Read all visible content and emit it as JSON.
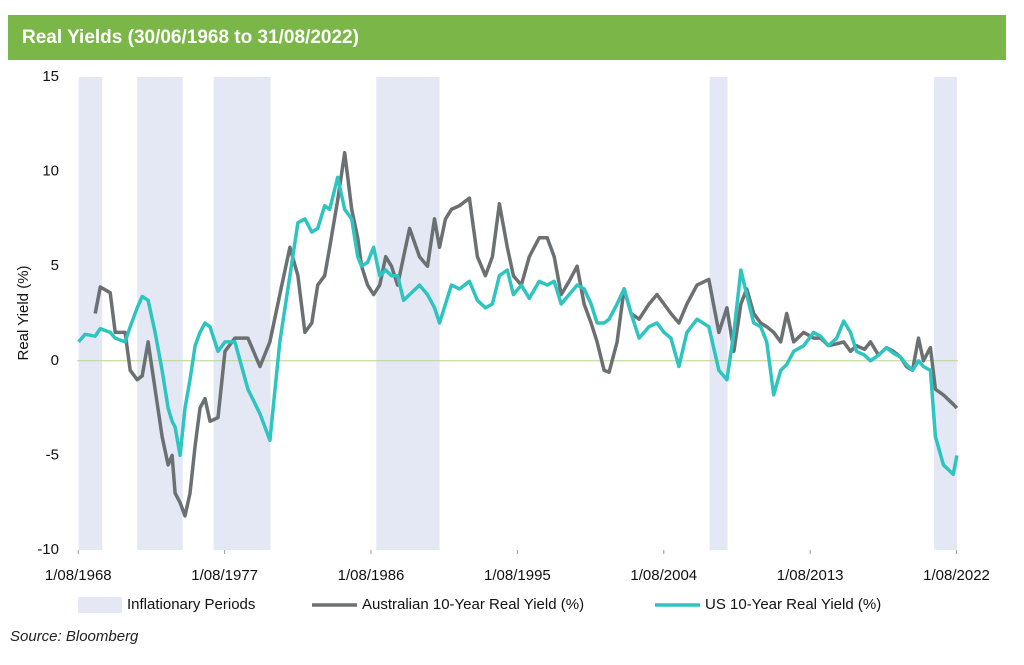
{
  "chart_data": {
    "type": "line",
    "title": "Real Yields (30/06/1968 to 31/08/2022)",
    "y_label": "Real Yield (%)",
    "source": "Source: Bloomberg",
    "xlim": [
      1968.5,
      2022.67
    ],
    "xticks": [
      {
        "value": 1968.58,
        "label": "1/08/1968"
      },
      {
        "value": 1977.58,
        "label": "1/08/1977"
      },
      {
        "value": 1986.58,
        "label": "1/08/1986"
      },
      {
        "value": 1995.58,
        "label": "1/08/1995"
      },
      {
        "value": 2004.58,
        "label": "1/08/2004"
      },
      {
        "value": 2013.58,
        "label": "1/08/2013"
      },
      {
        "value": 2022.58,
        "label": "1/08/2022"
      }
    ],
    "ylim": [
      -10,
      15
    ],
    "yticks": [
      -10,
      -5,
      0,
      5,
      10,
      15
    ],
    "grid": false,
    "shaded_periods": {
      "name": "Inflationary Periods",
      "color": "#e4e8f4",
      "ranges": [
        [
          1968.6,
          1970.05
        ],
        [
          1972.2,
          1975.0
        ],
        [
          1976.9,
          1980.4
        ],
        [
          1986.9,
          1990.8
        ],
        [
          2007.4,
          2008.5
        ],
        [
          2021.2,
          2022.6
        ]
      ]
    },
    "x": [
      1968.6,
      1969.0,
      1969.62,
      1969.93,
      1970.54,
      1970.85,
      1971.46,
      1971.77,
      1972.2,
      1972.51,
      1972.87,
      1973.3,
      1973.73,
      1974.1,
      1974.35,
      1974.53,
      1974.84,
      1975.14,
      1975.45,
      1975.76,
      1976.06,
      1976.37,
      1976.68,
      1977.17,
      1977.6,
      1978.21,
      1979.01,
      1979.75,
      1980.36,
      1980.97,
      1981.59,
      1982.08,
      1982.51,
      1982.94,
      1983.3,
      1983.73,
      1984.04,
      1984.53,
      1984.96,
      1985.39,
      1985.76,
      1986.0,
      1986.37,
      1986.74,
      1987.11,
      1987.48,
      1987.84,
      1988.21,
      1988.58,
      1988.95,
      1989.56,
      1990.05,
      1990.48,
      1990.79,
      1991.16,
      1991.52,
      1992.02,
      1992.63,
      1993.12,
      1993.61,
      1994.04,
      1994.47,
      1994.96,
      1995.33,
      1995.82,
      1996.31,
      1996.92,
      1997.41,
      1997.84,
      1998.27,
      1998.76,
      1999.25,
      1999.68,
      2000.11,
      2000.48,
      2000.91,
      2001.22,
      2001.71,
      2002.14,
      2002.57,
      2003.06,
      2003.67,
      2004.16,
      2004.59,
      2005.02,
      2005.51,
      2006.0,
      2006.62,
      2007.35,
      2007.97,
      2008.46,
      2008.89,
      2009.32,
      2009.68,
      2010.11,
      2010.54,
      2010.91,
      2011.34,
      2011.77,
      2012.14,
      2012.57,
      2013.18,
      2013.79,
      2014.22,
      2014.71,
      2015.21,
      2015.64,
      2016.06,
      2016.43,
      2016.92,
      2017.29,
      2017.78,
      2018.27,
      2018.7,
      2019.13,
      2019.5,
      2019.87,
      2020.24,
      2020.54,
      2020.97,
      2021.28,
      2021.77,
      2022.38,
      2022.6
    ],
    "series": [
      {
        "name": "Australian 10-Year Real Yield (%)",
        "color": "#6b7072",
        "values": [
          null,
          null,
          2.5,
          3.9,
          3.6,
          1.5,
          1.5,
          -0.5,
          -1.0,
          -0.8,
          1.0,
          -1.5,
          -4,
          -5.5,
          -5,
          -7,
          -7.5,
          -8.2,
          -7,
          -4.5,
          -2.5,
          -2.0,
          -3.2,
          -3.0,
          0.5,
          1.2,
          1.2,
          -0.3,
          1.0,
          3.5,
          6.0,
          4.5,
          1.5,
          2.0,
          4.0,
          4.5,
          6.0,
          8.5,
          11.0,
          8.0,
          6.5,
          5.0,
          4.0,
          3.5,
          4.0,
          5.5,
          5.0,
          4.0,
          5.5,
          7.0,
          5.5,
          5.0,
          7.5,
          6.0,
          7.5,
          8.0,
          8.2,
          8.6,
          5.5,
          4.5,
          5.5,
          8.3,
          6.0,
          4.5,
          4.0,
          5.5,
          6.5,
          6.5,
          5.5,
          3.5,
          4.2,
          5.0,
          3.0,
          2.0,
          1.0,
          -0.5,
          -0.6,
          1.0,
          3.8,
          2.5,
          2.2,
          3.0,
          3.5,
          3.0,
          2.5,
          2.0,
          3.0,
          4.0,
          4.3,
          1.5,
          2.8,
          0.5,
          3.0,
          3.8,
          2.5,
          2.0,
          1.8,
          1.5,
          1.0,
          2.5,
          1.0,
          1.5,
          1.2,
          1.2,
          0.8,
          0.9,
          1.0,
          0.5,
          0.8,
          0.6,
          1.0,
          0.3,
          0.7,
          0.5,
          0.2,
          -0.3,
          -0.5,
          1.2,
          0.0,
          0.7,
          -1.5,
          -1.8,
          -2.3,
          -2.5
        ]
      },
      {
        "name": "US 10-Year Real Yield (%)",
        "color": "#2ec4bf",
        "values": [
          1.0,
          1.4,
          1.3,
          1.7,
          1.5,
          1.2,
          1.0,
          1.8,
          2.8,
          3.4,
          3.2,
          1.5,
          -0.5,
          -2.5,
          -3.2,
          -3.5,
          -5.0,
          -2.5,
          -1.0,
          0.8,
          1.5,
          2.0,
          1.8,
          0.5,
          1.0,
          1.0,
          -1.5,
          -2.8,
          -4.2,
          1.0,
          4.5,
          7.3,
          7.5,
          6.8,
          7.0,
          8.2,
          8.0,
          9.7,
          8.0,
          7.5,
          5.5,
          5.0,
          5.2,
          6.0,
          4.5,
          4.8,
          4.5,
          4.5,
          3.2,
          3.5,
          4.0,
          3.5,
          2.8,
          2.0,
          3.0,
          4.0,
          3.8,
          4.2,
          3.2,
          2.8,
          3.0,
          4.5,
          4.8,
          3.5,
          4.0,
          3.3,
          4.2,
          4.0,
          4.2,
          3.0,
          3.5,
          4.0,
          3.8,
          3.0,
          2.0,
          2.0,
          2.2,
          3.0,
          3.8,
          2.5,
          1.2,
          1.8,
          2.0,
          1.5,
          1.2,
          -0.3,
          1.5,
          2.2,
          1.8,
          -0.5,
          -1.0,
          1.5,
          4.8,
          3.5,
          2.0,
          1.8,
          1.0,
          -1.8,
          -0.5,
          -0.2,
          0.5,
          0.8,
          1.5,
          1.3,
          0.8,
          1.2,
          2.1,
          1.5,
          0.5,
          0.3,
          0.0,
          0.3,
          0.7,
          0.4,
          0.2,
          -0.2,
          -0.5,
          0.0,
          -0.3,
          -0.5,
          -4.0,
          -5.5,
          -6.0,
          -5.0
        ]
      }
    ]
  }
}
